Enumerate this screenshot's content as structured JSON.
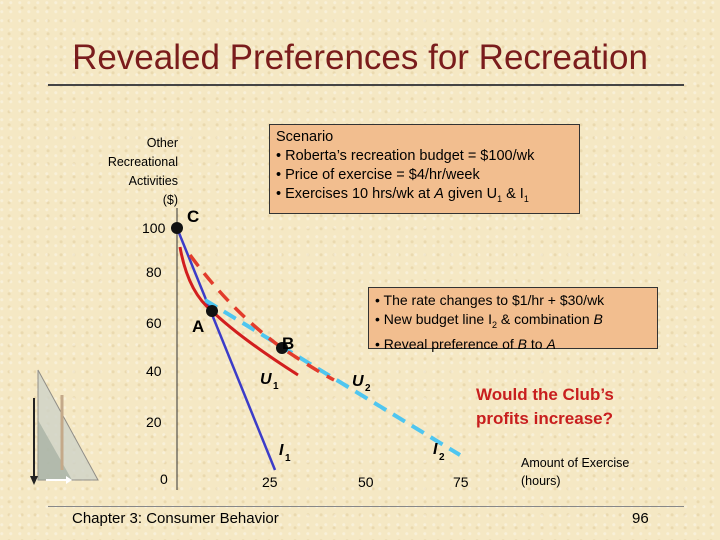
{
  "slide": {
    "title": "Revealed Preferences for Recreation",
    "footer": "Chapter 3: Consumer Behavior",
    "page_number": "96"
  },
  "y_axis": {
    "label_lines": [
      "Other",
      "Recreational",
      "Activities",
      "($)"
    ],
    "ticks": [
      "100",
      "80",
      "60",
      "40",
      "20",
      "0"
    ]
  },
  "x_axis": {
    "label_lines": [
      "Amount of Exercise",
      "(hours)"
    ],
    "ticks": [
      "25",
      "50",
      "75"
    ]
  },
  "scenario_box": {
    "heading": "Scenario",
    "line1": "• Roberta’s recreation budget = $100/wk",
    "line2": "• Price of exercise = $4/hr/week",
    "line3_prefix": "• Exercises 10 hrs/wk at ",
    "line3_point": "A",
    "line3_middle": " given U",
    "line3_u_sub": "1",
    "line3_and": " & I",
    "line3_i_sub": "1"
  },
  "rate_box": {
    "line1": "• The rate changes to $1/hr + $30/wk",
    "line2_prefix": "• New budget line I",
    "line2_sub": "2",
    "line2_middle": " & combination ",
    "line2_point": "B",
    "line3_prefix": "• Reveal preference of ",
    "line3_b": "B",
    "line3_middle": " to ",
    "line3_a": "A"
  },
  "callout": {
    "line1": "Would the Club’s",
    "line2": "profits increase?"
  },
  "points": {
    "C": "C",
    "A": "A",
    "B": "B"
  },
  "curves": {
    "U1": {
      "main": "U",
      "sub": "1"
    },
    "U2": {
      "main": "U",
      "sub": "2"
    },
    "I1": {
      "main": "I",
      "sub": "1"
    },
    "I2": {
      "main": "I",
      "sub": "2"
    }
  },
  "colors": {
    "title": "#7a1c1c",
    "budget_I1": "#3c3cc8",
    "budget_I2": "#4fc6f0",
    "indifference_U1": "#d21e1e",
    "indifference_U2": "#e23c2c",
    "box_fill": "#f2be8f",
    "callout": "#c81e1e"
  }
}
